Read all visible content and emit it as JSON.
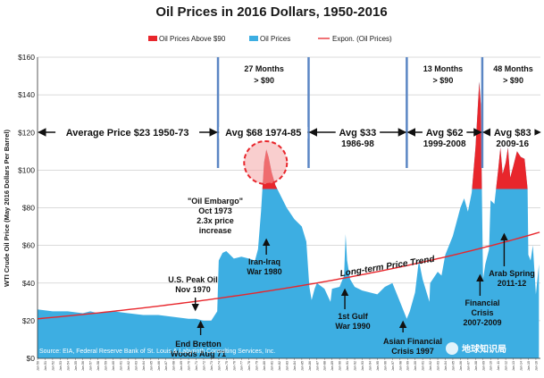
{
  "chart_data": {
    "type": "area",
    "title": "Oil Prices in 2016 Dollars, 1950-2016",
    "ylabel": "WTI Crude Oil Price (May 2016 Dollars Per Barrel)",
    "ylim": [
      0,
      160
    ],
    "y_ticks": [
      "$0",
      "$20",
      "$40",
      "$60",
      "$80",
      "$100",
      "$120",
      "$140",
      "$160"
    ],
    "legend": [
      {
        "label": "Oil Prices  Above $90",
        "color": "#e8262c"
      },
      {
        "label": "Oil Prices",
        "color": "#3daee2"
      },
      {
        "label": "Expon.  (Oil Prices)",
        "color": "#e8262c"
      }
    ],
    "x_ticks": [
      "Jan-50",
      "Jan-51",
      "Jan-52",
      "Jan-53",
      "Jan-54",
      "Jan-55",
      "Jan-56",
      "Jan-57",
      "Jan-58",
      "Jan-59",
      "Jan-60",
      "Jan-61",
      "Jan-62",
      "Jan-63",
      "Jan-64",
      "Jan-65",
      "Jan-66",
      "Jan-67",
      "Jan-68",
      "Jan-69",
      "Jan-70",
      "Jan-71",
      "Jan-72",
      "Jan-73",
      "Jan-74",
      "Jan-75",
      "Jan-76",
      "Jan-77",
      "Jan-78",
      "Jan-79",
      "Jan-80",
      "Jan-81",
      "Jan-82",
      "Jan-83",
      "Jan-84",
      "Jan-85",
      "Jan-86",
      "Jan-87",
      "Jan-88",
      "Jan-89",
      "Jan-90",
      "Jan-91",
      "Jan-92",
      "Jan-93",
      "Jan-94",
      "Jan-95",
      "Jan-96",
      "Jan-97",
      "Jan-98",
      "Jan-99",
      "Jan-00",
      "Jan-01",
      "Jan-02",
      "Jan-03",
      "Jan-04",
      "Jan-05",
      "Jan-06",
      "Jan-07",
      "Jan-08",
      "Jan-09",
      "Jan-10",
      "Jan-11",
      "Jan-12",
      "Jan-13",
      "Jan-14",
      "Jan-15",
      "Jan-16"
    ],
    "series": [
      {
        "name": "Oil Prices",
        "x": [
          1950,
          1952,
          1954,
          1956,
          1957,
          1958,
          1960,
          1962,
          1964,
          1966,
          1968,
          1970,
          1971,
          1972,
          1973.0,
          1973.8,
          1974.0,
          1974.5,
          1975,
          1976,
          1977,
          1978,
          1978.8,
          1979.2,
          1979.6,
          1980.0,
          1980.3,
          1980.6,
          1981.0,
          1981.5,
          1982,
          1983,
          1984,
          1985,
          1985.6,
          1986.0,
          1986.3,
          1986.7,
          1987,
          1988,
          1988.8,
          1989,
          1990.0,
          1990.6,
          1990.8,
          1991.0,
          1991.4,
          1992,
          1993,
          1994,
          1995,
          1996,
          1997,
          1998.0,
          1998.9,
          1999.3,
          2000,
          2000.5,
          2001,
          2001.9,
          2002,
          2003,
          2003.5,
          2004,
          2005,
          2006,
          2006.5,
          2007,
          2007.5,
          2008.0,
          2008.5,
          2008.7,
          2009.0,
          2009.3,
          2009.8,
          2010,
          2010.5,
          2011,
          2011.3,
          2011.6,
          2012,
          2012.3,
          2012.6,
          2013,
          2013.5,
          2014,
          2014.5,
          2014.9,
          2015.0,
          2015.3,
          2015.6,
          2016.0,
          2016.4
        ],
        "y": [
          26,
          25,
          25,
          24,
          25,
          24,
          25,
          24,
          23,
          23,
          22,
          21,
          21,
          20,
          20,
          25,
          52,
          56,
          57,
          53,
          54,
          53,
          52,
          58,
          78,
          104,
          111,
          107,
          99,
          92,
          88,
          80,
          74,
          70,
          62,
          38,
          31,
          37,
          40,
          37,
          30,
          37,
          38,
          44,
          66,
          52,
          42,
          38,
          36,
          35,
          34,
          38,
          40,
          30,
          21,
          25,
          35,
          52,
          42,
          30,
          40,
          46,
          44,
          55,
          65,
          80,
          85,
          78,
          88,
          112,
          147,
          135,
          42,
          50,
          58,
          84,
          82,
          100,
          112,
          98,
          104,
          112,
          96,
          102,
          110,
          107,
          106,
          90,
          55,
          52,
          60,
          34,
          50
        ]
      },
      {
        "name": "Expon.  (Oil Prices)",
        "x": [
          1950,
          2016.5
        ],
        "y": [
          21,
          67
        ]
      }
    ],
    "above_90_threshold": 90,
    "annotations": {
      "periods": [
        {
          "label": "Average Price $23 1950-73"
        },
        {
          "label": "Avg $68 1974-85"
        },
        {
          "label": "Avg $33",
          "sub": "1986-98"
        },
        {
          "label": "Avg $62",
          "sub": "1999-2008"
        },
        {
          "label": "Avg $83",
          "sub": "2009-16"
        }
      ],
      "months": [
        {
          "line1": "27 Months",
          "line2": "> $90"
        },
        {
          "line1": "13 Months",
          "line2": "> $90"
        },
        {
          "line1": "48 Months",
          "line2": "> $90"
        }
      ],
      "events": {
        "embargo": [
          "\"Oil Embargo\"",
          "Oct 1973",
          "2.3x price",
          "increase"
        ],
        "us_peak": [
          "U.S. Peak Oil",
          "Nov 1970"
        ],
        "bretton": [
          "End Bretton",
          "Woods Aug 71"
        ],
        "iran_iraq": [
          "Iran-Iraq",
          "War 1980"
        ],
        "gulf": [
          "1st Gulf",
          "War 1990"
        ],
        "asian": [
          "Asian Financial",
          "Crisis 1997"
        ],
        "financial": [
          "Financial",
          "Crisis",
          "2007-2009"
        ],
        "arab": [
          "Arab Spring",
          "2011-12"
        ]
      },
      "trend_label": "Long-term Price Trend"
    },
    "source": "Source:  EIA, Federal Reserve Bank of St. Louis & Labyrinth Consulting Services, Inc.",
    "watermark": "地球知识局"
  },
  "colors": {
    "area": "#3daee2",
    "above90": "#e8262c",
    "trend": "#e8262c",
    "divider": "#5b86c4",
    "grid": "#cfcfcf",
    "circle": "#f4a6a6"
  }
}
